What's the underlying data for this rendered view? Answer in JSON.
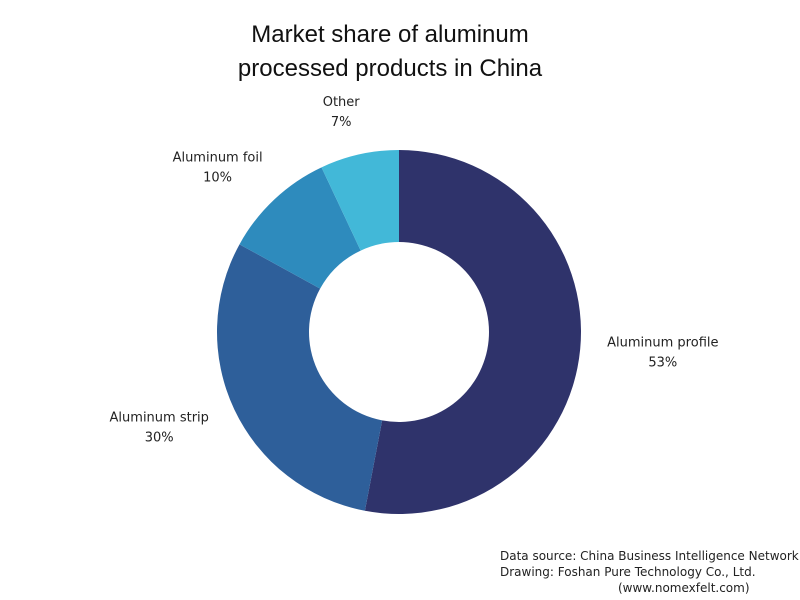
{
  "chart_data": {
    "type": "donut",
    "title": "Market share of aluminum processed products in China",
    "categories": [
      "Aluminum profile",
      "Aluminum strip",
      "Aluminum foil",
      "Other"
    ],
    "values": [
      53,
      30,
      10,
      7
    ],
    "value_labels": [
      "53%",
      "30%",
      "10%",
      "7%"
    ],
    "colors": [
      "#2f336b",
      "#2e5f9a",
      "#2e8bbd",
      "#42b8d8"
    ],
    "annotations": [
      "Data source: China Business Intelligence Network",
      "Drawing: Foshan Pure Technology Co., Ltd.",
      "(www.nomexfelt.com)"
    ]
  }
}
